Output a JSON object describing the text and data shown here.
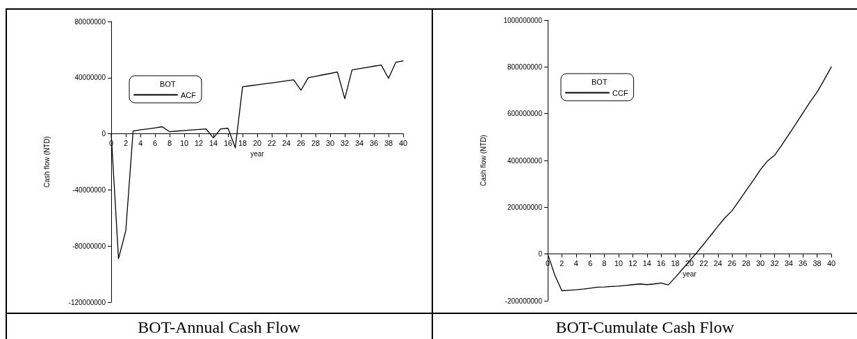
{
  "chart_data": [
    {
      "type": "line",
      "title": "BOT-Annual Cash Flow",
      "xlabel": "year",
      "ylabel": "Cash flow (NTD)",
      "legend_title": "BOT",
      "legend": "top left",
      "grid": false,
      "marker": "none",
      "line_style": "solid",
      "x": [
        0,
        1,
        2,
        3,
        4,
        5,
        6,
        7,
        8,
        9,
        10,
        11,
        12,
        13,
        14,
        15,
        16,
        17,
        18,
        19,
        20,
        21,
        22,
        23,
        24,
        25,
        26,
        27,
        28,
        29,
        30,
        31,
        32,
        33,
        34,
        35,
        36,
        37,
        38,
        39,
        40
      ],
      "series": [
        {
          "name": "ACF",
          "color": "#000000",
          "values": [
            0,
            -89000000,
            -69000000,
            2000000,
            2800000,
            3500000,
            4200000,
            5000000,
            1500000,
            1900000,
            2300000,
            2700000,
            3100000,
            3500000,
            -3000000,
            3500000,
            4000000,
            -10000000,
            33500000,
            34200000,
            34900000,
            35600000,
            36300000,
            37000000,
            37700000,
            38500000,
            31000000,
            40000000,
            41000000,
            42000000,
            43000000,
            44000000,
            25000000,
            45500000,
            46400000,
            47300000,
            48200000,
            49000000,
            39500000,
            51000000,
            52000000
          ]
        }
      ],
      "xlim": [
        0,
        40
      ],
      "xticks": [
        0,
        2,
        4,
        6,
        8,
        10,
        12,
        14,
        16,
        18,
        20,
        22,
        24,
        26,
        28,
        30,
        32,
        34,
        36,
        38,
        40
      ],
      "ylim": [
        -120000000,
        80000000
      ],
      "yticks": [
        -120000000,
        -80000000,
        -40000000,
        0,
        40000000,
        80000000
      ]
    },
    {
      "type": "line",
      "title": "BOT-Cumulate Cash Flow",
      "xlabel": "year",
      "ylabel": "Cash flow (NTD)",
      "legend_title": "BOT",
      "legend": "top left",
      "grid": false,
      "marker": "none",
      "line_style": "solid",
      "x": [
        0,
        1,
        2,
        3,
        4,
        5,
        6,
        7,
        8,
        9,
        10,
        11,
        12,
        13,
        14,
        15,
        16,
        17,
        18,
        19,
        20,
        21,
        22,
        23,
        24,
        25,
        26,
        27,
        28,
        29,
        30,
        31,
        32,
        33,
        34,
        35,
        36,
        37,
        38,
        39,
        40
      ],
      "series": [
        {
          "name": "CCF",
          "color": "#000000",
          "values": [
            0,
            -90000000,
            -157000000,
            -155000000,
            -153000000,
            -150000000,
            -146000000,
            -142000000,
            -141000000,
            -139000000,
            -137000000,
            -134000000,
            -131000000,
            -128000000,
            -131000000,
            -128000000,
            -124000000,
            -132000000,
            -100000000,
            -65000000,
            -30000000,
            5000000,
            42000000,
            80000000,
            118000000,
            155000000,
            185000000,
            228000000,
            272000000,
            315000000,
            360000000,
            398000000,
            422000000,
            465000000,
            510000000,
            556000000,
            603000000,
            650000000,
            692000000,
            745000000,
            800000000
          ]
        }
      ],
      "xlim": [
        0,
        40
      ],
      "xticks": [
        0,
        2,
        4,
        6,
        8,
        10,
        12,
        14,
        16,
        18,
        20,
        22,
        24,
        26,
        28,
        30,
        32,
        34,
        36,
        38,
        40
      ],
      "ylim": [
        -200000000,
        1000000000
      ],
      "yticks": [
        -200000000,
        0,
        200000000,
        400000000,
        600000000,
        800000000,
        1000000000
      ]
    }
  ]
}
